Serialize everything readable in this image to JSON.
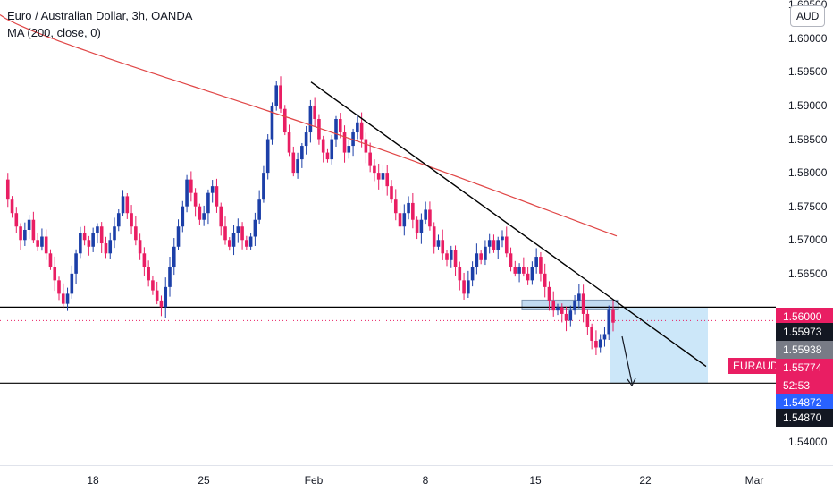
{
  "legend": {
    "title": "Euro / Australian Dollar, 3h, OANDA",
    "indicator": "MA (200, close, 0)"
  },
  "currency_button": "AUD",
  "pair_tag": "EURAUD",
  "colors": {
    "up": "#1c3fa8",
    "down": "#e91e63",
    "ma": "#e04646",
    "trendline": "#000000",
    "zone": "#bfe1f7",
    "horizontal_line": "#000000"
  },
  "y_axis": {
    "ticks": [
      "1.60500",
      "1.60000",
      "1.59500",
      "1.59000",
      "1.58500",
      "1.58000",
      "1.57500",
      "1.57000",
      "1.56500",
      "1.54000"
    ]
  },
  "price_labels": [
    {
      "text": "1.56000",
      "bg": "#e91e63"
    },
    {
      "text": "1.55973",
      "bg": "#131722"
    },
    {
      "text": "1.55938",
      "bg": "#787b86"
    },
    {
      "text": "1.55774",
      "bg": "#e91e63"
    },
    {
      "text": "52:53",
      "bg": "#e91e63"
    },
    {
      "text": "1.54872",
      "bg": "#2962ff"
    },
    {
      "text": "1.54870",
      "bg": "#131722"
    }
  ],
  "x_axis": {
    "ticks": [
      "18",
      "25",
      "Feb",
      "8",
      "15",
      "22",
      "Mar"
    ]
  },
  "chart_data": {
    "type": "candlestick",
    "symbol": "EURAUD",
    "ylim": [
      1.5365,
      1.6057
    ],
    "levels": [
      1.56,
      1.5487
    ],
    "current_price": 1.55774,
    "path": [
      1.579,
      1.576,
      1.574,
      1.572,
      1.57,
      1.5715,
      1.573,
      1.57,
      1.569,
      1.5705,
      1.568,
      1.566,
      1.564,
      1.562,
      1.5605,
      1.562,
      1.565,
      1.568,
      1.571,
      1.57,
      1.569,
      1.571,
      1.572,
      1.5695,
      1.568,
      1.57,
      1.572,
      1.574,
      1.5765,
      1.574,
      1.572,
      1.57,
      1.568,
      1.566,
      1.564,
      1.5625,
      1.561,
      1.56,
      1.563,
      1.566,
      1.569,
      1.572,
      1.575,
      1.579,
      1.577,
      1.575,
      1.573,
      1.574,
      1.577,
      1.578,
      1.575,
      1.572,
      1.57,
      1.569,
      1.571,
      1.572,
      1.57,
      1.569,
      1.5705,
      1.573,
      1.576,
      1.58,
      1.585,
      1.59,
      1.593,
      1.5895,
      1.586,
      1.583,
      1.58,
      1.582,
      1.584,
      1.586,
      1.59,
      1.588,
      1.585,
      1.583,
      1.582,
      1.585,
      1.588,
      1.586,
      1.583,
      1.584,
      1.586,
      1.5875,
      1.585,
      1.583,
      1.581,
      1.58,
      1.579,
      1.58,
      1.578,
      1.576,
      1.574,
      1.572,
      1.574,
      1.5755,
      1.573,
      1.571,
      1.573,
      1.5745,
      1.572,
      1.569,
      1.57,
      1.568,
      1.567,
      1.5685,
      1.566,
      1.564,
      1.562,
      1.564,
      1.566,
      1.568,
      1.567,
      1.569,
      1.57,
      1.5685,
      1.57,
      1.5705,
      1.568,
      1.566,
      1.565,
      1.566,
      1.565,
      1.564,
      1.566,
      1.5675,
      1.565,
      1.563,
      1.561,
      1.5595,
      1.56,
      1.559,
      1.558,
      1.5595,
      1.561,
      1.562,
      1.559,
      1.557,
      1.555,
      1.554,
      1.5552,
      1.556,
      1.5597,
      1.5577
    ]
  }
}
